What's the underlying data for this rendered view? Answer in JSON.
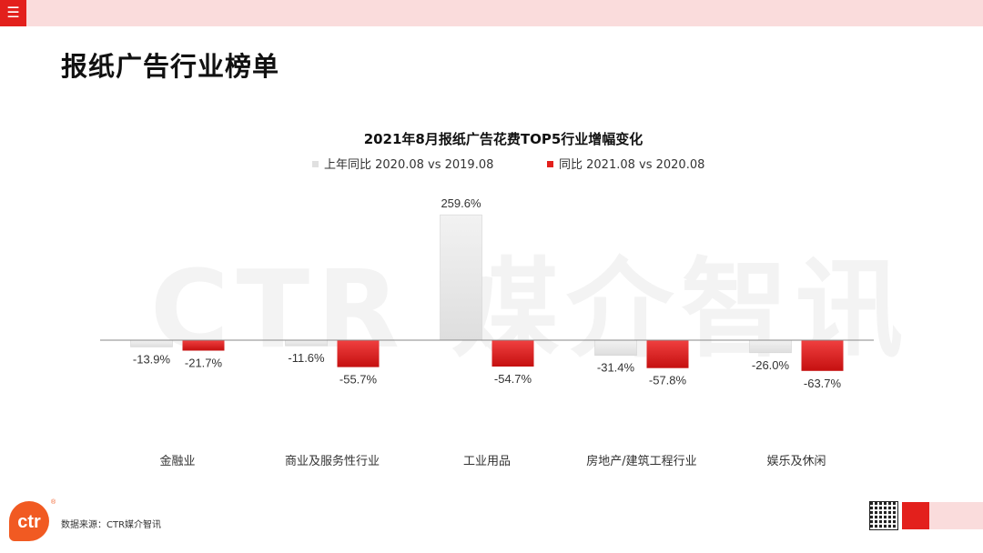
{
  "page": {
    "menu_icon": "☰",
    "title": "报纸广告行业榜单",
    "watermark": "CTR 媒介智讯",
    "source": "数据来源：CTR媒介智讯",
    "logo_text": "ctr",
    "logo_reg": "®"
  },
  "colors": {
    "accent": "#e3201c",
    "light_bar": "#e6e6e6",
    "pink": "#fadcdc",
    "logo": "#f15a22"
  },
  "chart_data": {
    "type": "bar",
    "title": "2021年8月报纸广告花费TOP5行业增幅变化",
    "categories": [
      "金融业",
      "商业及服务性行业",
      "工业用品",
      "房地产/建筑工程行业",
      "娱乐及休闲"
    ],
    "series": [
      {
        "name": "上年同比 2020.08 vs 2019.08",
        "values": [
          -13.9,
          -11.6,
          259.6,
          -31.4,
          -26.0
        ],
        "labels": [
          "-13.9%",
          "-11.6%",
          "259.6%",
          "-31.4%",
          "-26.0%"
        ],
        "color": "#e6e6e6"
      },
      {
        "name": "同比 2021.08 vs 2020.08",
        "values": [
          -21.7,
          -55.7,
          -54.7,
          -57.8,
          -63.7
        ],
        "labels": [
          "-21.7%",
          "-55.7%",
          "-54.7%",
          "-57.8%",
          "-63.7%"
        ],
        "color": "#e3201c"
      }
    ],
    "legend_position": "top-center",
    "grid": false,
    "ylim": [
      -70,
      270
    ]
  }
}
